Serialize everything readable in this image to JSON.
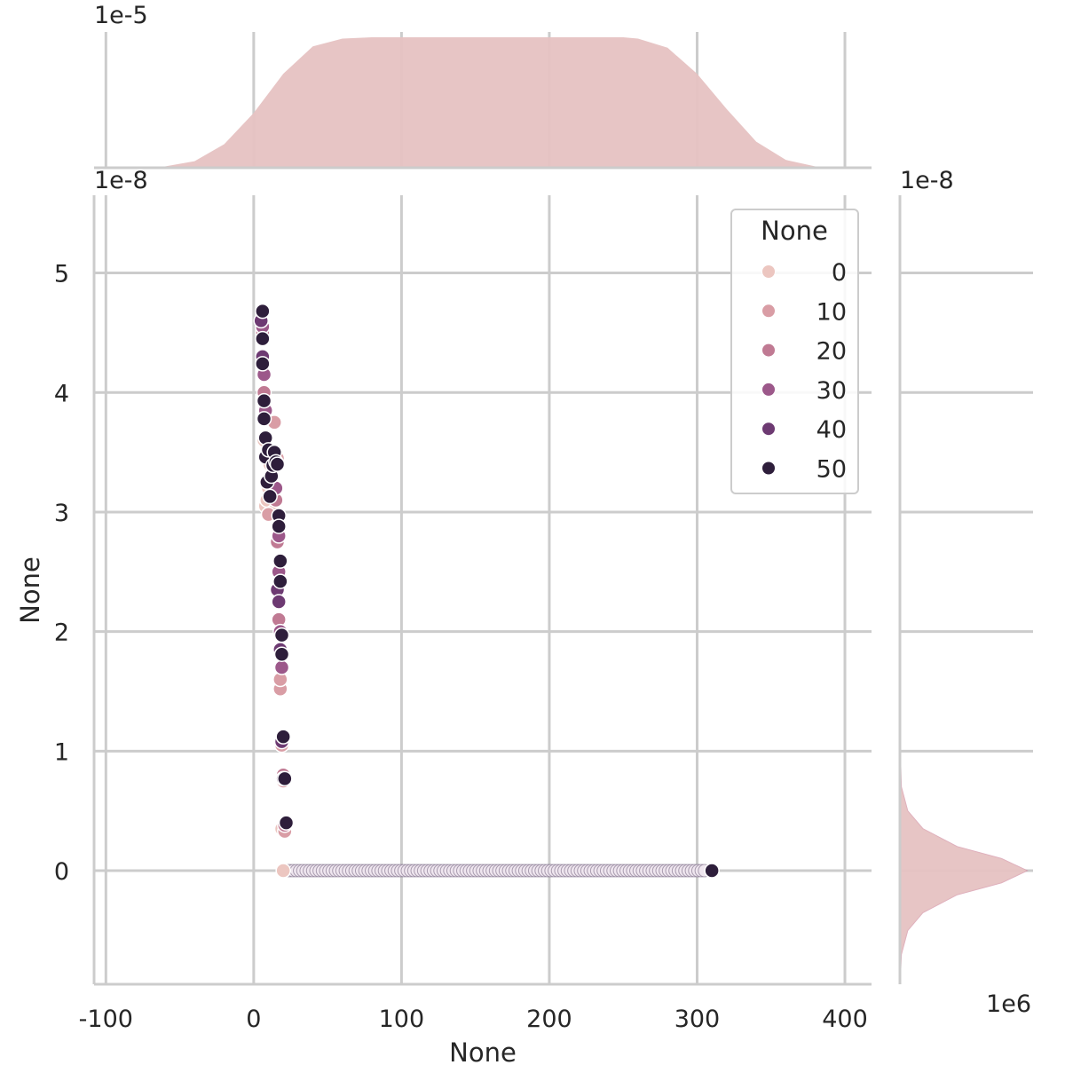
{
  "chart_data": {
    "type": "scatter",
    "xlabel": "None",
    "ylabel": "None",
    "y_offset_label": "1e-8",
    "xlim": [
      -108,
      418
    ],
    "ylim": [
      -0.95,
      5.65
    ],
    "xticks": [
      -100,
      0,
      100,
      200,
      300,
      400
    ],
    "yticks": [
      0,
      1,
      2,
      3,
      4,
      5
    ],
    "grid": true,
    "legend": {
      "title": "None",
      "placement": "top-right",
      "entries": [
        {
          "label": "0",
          "color": "#ecc6c0"
        },
        {
          "label": "10",
          "color": "#d99da5"
        },
        {
          "label": "20",
          "color": "#c07a93"
        },
        {
          "label": "30",
          "color": "#9c588a"
        },
        {
          "label": "40",
          "color": "#6d3a72"
        },
        {
          "label": "50",
          "color": "#2e1e3b"
        }
      ]
    },
    "series": [
      {
        "name": "0",
        "color": "#ecc6c0",
        "points": [
          [
            8,
            3.05
          ],
          [
            10,
            3.2
          ],
          [
            9,
            3.1
          ],
          [
            11,
            3.4
          ],
          [
            7,
            3.6
          ],
          [
            12,
            3.3
          ],
          [
            13,
            3.0
          ],
          [
            19,
            0.35
          ],
          [
            20,
            0.0
          ]
        ]
      },
      {
        "name": "10",
        "color": "#d99da5",
        "points": [
          [
            10,
            2.98
          ],
          [
            14,
            3.75
          ],
          [
            13,
            3.5
          ],
          [
            16,
            3.45
          ],
          [
            18,
            1.52
          ],
          [
            18,
            1.6
          ],
          [
            19,
            1.05
          ],
          [
            20,
            0.75
          ],
          [
            21,
            0.33
          ]
        ]
      },
      {
        "name": "20",
        "color": "#c07a93",
        "points": [
          [
            7,
            4.0
          ],
          [
            6,
            4.5
          ],
          [
            15,
            3.1
          ],
          [
            17,
            2.1
          ],
          [
            18,
            2.6
          ],
          [
            16,
            2.75
          ],
          [
            20,
            0.8
          ],
          [
            21,
            0.38
          ]
        ]
      },
      {
        "name": "30",
        "color": "#9c588a",
        "points": [
          [
            6,
            4.55
          ],
          [
            7,
            4.15
          ],
          [
            8,
            3.85
          ],
          [
            15,
            3.2
          ],
          [
            17,
            2.5
          ],
          [
            17,
            2.8
          ],
          [
            18,
            2.0
          ],
          [
            19,
            1.7
          ]
        ]
      },
      {
        "name": "40",
        "color": "#6d3a72",
        "points": [
          [
            5,
            4.6
          ],
          [
            6,
            4.3
          ],
          [
            16,
            2.35
          ],
          [
            17,
            2.25
          ],
          [
            18,
            1.85
          ],
          [
            19,
            1.08
          ],
          [
            20,
            0.77
          ]
        ]
      },
      {
        "name": "50",
        "color": "#2e1e3b",
        "points": [
          [
            6,
            4.68
          ],
          [
            6,
            4.45
          ],
          [
            6,
            4.24
          ],
          [
            7,
            3.93
          ],
          [
            7,
            3.78
          ],
          [
            8,
            3.62
          ],
          [
            8,
            3.46
          ],
          [
            9,
            3.25
          ],
          [
            10,
            3.52
          ],
          [
            11,
            3.13
          ],
          [
            12,
            3.3
          ],
          [
            13,
            3.39
          ],
          [
            14,
            3.5
          ],
          [
            15,
            3.42
          ],
          [
            16,
            3.4
          ],
          [
            17,
            2.97
          ],
          [
            17,
            2.88
          ],
          [
            18,
            2.59
          ],
          [
            18,
            2.42
          ],
          [
            19,
            1.97
          ],
          [
            19,
            1.81
          ],
          [
            20,
            1.12
          ],
          [
            21,
            0.77
          ],
          [
            22,
            0.4
          ],
          [
            310,
            0.0
          ]
        ]
      }
    ],
    "zero_line_points": {
      "x_start": 20,
      "x_end": 305,
      "count": 130,
      "y": 0
    },
    "top_marginal": {
      "type": "kde",
      "offset_label": "1e-5",
      "color": "#e6c2c2",
      "curve_x": [
        -108,
        -80,
        -60,
        -40,
        -20,
        0,
        20,
        40,
        60,
        80,
        100,
        150,
        200,
        250,
        260,
        280,
        300,
        320,
        340,
        360,
        380,
        400,
        418
      ],
      "curve_y": [
        0.0,
        0.002,
        0.01,
        0.05,
        0.18,
        0.42,
        0.72,
        0.93,
        0.99,
        1.0,
        1.0,
        1.0,
        1.0,
        1.0,
        0.99,
        0.92,
        0.72,
        0.45,
        0.2,
        0.06,
        0.01,
        0.001,
        0.0
      ]
    },
    "right_marginal": {
      "type": "kde",
      "offset_label": "1e-8",
      "scale_label": "1e6",
      "color": "#e6c2c2",
      "curve_y": [
        -0.95,
        -0.7,
        -0.5,
        -0.35,
        -0.2,
        -0.1,
        0.0,
        0.1,
        0.2,
        0.35,
        0.5,
        0.7,
        0.95,
        1.5,
        2.5,
        3.5,
        4.5,
        5.65
      ],
      "curve_density": [
        0.0,
        0.01,
        0.06,
        0.18,
        0.45,
        0.8,
        1.0,
        0.8,
        0.45,
        0.18,
        0.06,
        0.01,
        0.003,
        0.002,
        0.003,
        0.004,
        0.002,
        0.0
      ]
    }
  }
}
